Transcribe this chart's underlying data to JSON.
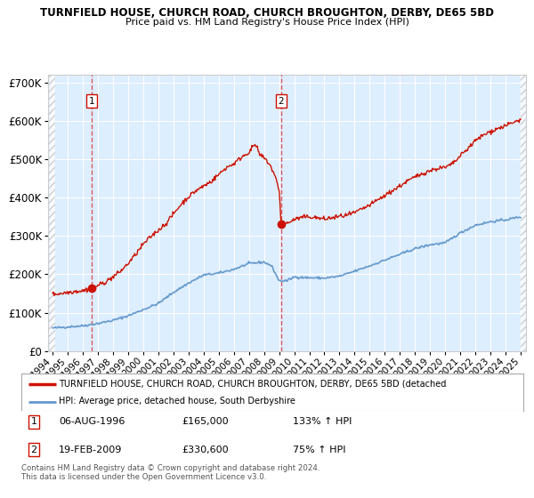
{
  "title": "TURNFIELD HOUSE, CHURCH ROAD, CHURCH BROUGHTON, DERBY, DE65 5BD",
  "subtitle": "Price paid vs. HM Land Registry's House Price Index (HPI)",
  "legend_line1": "TURNFIELD HOUSE, CHURCH ROAD, CHURCH BROUGHTON, DERBY, DE65 5BD (detached",
  "legend_line2": "HPI: Average price, detached house, South Derbyshire",
  "annotation1_date": "06-AUG-1996",
  "annotation1_price": "£165,000",
  "annotation1_hpi": "133% ↑ HPI",
  "annotation2_date": "19-FEB-2009",
  "annotation2_price": "£330,600",
  "annotation2_hpi": "75% ↑ HPI",
  "footer": "Contains HM Land Registry data © Crown copyright and database right 2024.\nThis data is licensed under the Open Government Licence v3.0.",
  "hpi_color": "#6699cc",
  "price_color": "#cc1100",
  "dashed_line_color": "#dd3333",
  "bg_color": "#ddeeff",
  "ylim": [
    0,
    720000
  ],
  "yticks": [
    0,
    100000,
    200000,
    300000,
    400000,
    500000,
    600000,
    700000
  ],
  "xlabel_years": [
    "1994",
    "1995",
    "1996",
    "1997",
    "1998",
    "1999",
    "2000",
    "2001",
    "2002",
    "2003",
    "2004",
    "2005",
    "2006",
    "2007",
    "2008",
    "2009",
    "2010",
    "2011",
    "2012",
    "2013",
    "2014",
    "2015",
    "2016",
    "2017",
    "2018",
    "2019",
    "2020",
    "2021",
    "2022",
    "2023",
    "2024",
    "2025"
  ],
  "sale1_year": 1996.6,
  "sale1_value": 165000,
  "sale2_year": 2009.12,
  "sale2_value": 330600,
  "box_edge_color": "#cc1100",
  "hpi_anchors_t": [
    1994.0,
    1995.0,
    1996.0,
    1997.0,
    1998.0,
    1999.0,
    2000.0,
    2001.0,
    2002.0,
    2003.0,
    2004.0,
    2005.0,
    2006.0,
    2007.0,
    2008.0,
    2008.5,
    2009.0,
    2009.5,
    2010.0,
    2011.0,
    2012.0,
    2013.0,
    2014.0,
    2015.0,
    2016.0,
    2017.0,
    2018.0,
    2019.0,
    2020.0,
    2021.0,
    2022.0,
    2023.0,
    2024.0,
    2025.0
  ],
  "hpi_anchors_v": [
    60000,
    63000,
    66000,
    72000,
    80000,
    92000,
    108000,
    124000,
    153000,
    177000,
    198000,
    203000,
    213000,
    228000,
    232000,
    222000,
    183000,
    183000,
    193000,
    191000,
    190000,
    195000,
    208000,
    222000,
    237000,
    252000,
    267000,
    277000,
    282000,
    308000,
    328000,
    337000,
    342000,
    350000
  ],
  "price_anchors_t": [
    1994.0,
    1994.5,
    1995.0,
    1995.5,
    1996.0,
    1996.6,
    1997.0,
    1997.5,
    1998.0,
    1998.5,
    1999.0,
    1999.5,
    2000.0,
    2000.5,
    2001.0,
    2001.5,
    2002.0,
    2002.5,
    2003.0,
    2003.5,
    2004.0,
    2004.5,
    2005.0,
    2005.5,
    2006.0,
    2006.3,
    2006.6,
    2007.0,
    2007.2,
    2007.35,
    2007.5,
    2007.7,
    2008.0,
    2008.2,
    2008.4,
    2008.6,
    2008.8,
    2009.0,
    2009.1,
    2009.12,
    2009.2,
    2009.5,
    2009.8,
    2010.0,
    2010.5,
    2011.0,
    2011.5,
    2012.0,
    2012.5,
    2013.0,
    2013.5,
    2014.0,
    2014.5,
    2015.0,
    2015.5,
    2016.0,
    2016.5,
    2017.0,
    2017.5,
    2018.0,
    2018.5,
    2019.0,
    2019.5,
    2020.0,
    2020.5,
    2021.0,
    2021.5,
    2022.0,
    2022.5,
    2023.0,
    2023.5,
    2024.0,
    2024.5,
    2025.0
  ],
  "price_anchors_v": [
    148000,
    150000,
    153000,
    156000,
    157000,
    165000,
    171000,
    180000,
    193000,
    208000,
    228000,
    252000,
    278000,
    298000,
    315000,
    332000,
    357000,
    382000,
    402000,
    418000,
    430000,
    442000,
    460000,
    478000,
    488000,
    498000,
    508000,
    518000,
    528000,
    538000,
    533000,
    512000,
    503000,
    495000,
    485000,
    467000,
    447000,
    422000,
    358000,
    330600,
    330600,
    333000,
    338000,
    343000,
    348000,
    350000,
    347000,
    344000,
    347000,
    351000,
    354000,
    360000,
    370000,
    380000,
    393000,
    405000,
    418000,
    430000,
    443000,
    453000,
    463000,
    470000,
    476000,
    478000,
    488000,
    508000,
    528000,
    548000,
    562000,
    572000,
    580000,
    587000,
    595000,
    603000
  ]
}
